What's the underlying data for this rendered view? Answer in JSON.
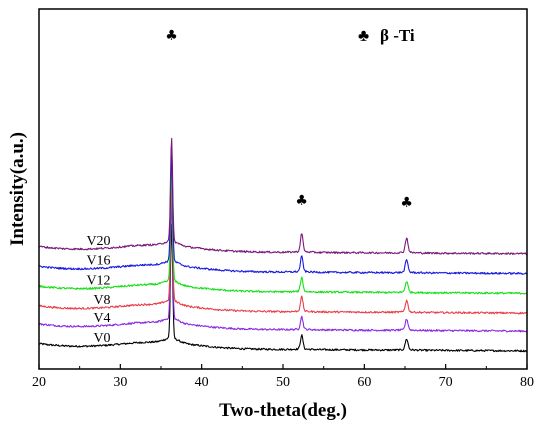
{
  "chart_data": {
    "type": "line",
    "title": "",
    "xlabel": "Two-theta(deg.)",
    "ylabel": "Intensity(a.u.)",
    "xlim": [
      20,
      80
    ],
    "xticks": [
      20,
      30,
      40,
      50,
      60,
      70,
      80
    ],
    "yticks_shown": false,
    "grid": false,
    "peaks": [
      36.3,
      52.3,
      65.2
    ],
    "peak_marker_symbol": "♣",
    "legend": {
      "symbol": "♣",
      "text": "β -Ti",
      "placement": "top-right"
    },
    "series": [
      {
        "name": "V0",
        "color": "#000000",
        "baseline": 0.0,
        "peak_heights": [
          3.2,
          0.38,
          0.3
        ]
      },
      {
        "name": "V4",
        "color": "#8a2be2",
        "baseline": 0.55,
        "peak_heights": [
          3.3,
          0.35,
          0.3
        ]
      },
      {
        "name": "V8",
        "color": "#e8404a",
        "baseline": 1.05,
        "peak_heights": [
          3.2,
          0.4,
          0.32
        ]
      },
      {
        "name": "V12",
        "color": "#16e016",
        "baseline": 1.6,
        "peak_heights": [
          3.1,
          0.38,
          0.3
        ]
      },
      {
        "name": "V16",
        "color": "#1a1ae0",
        "baseline": 2.15,
        "peak_heights": [
          3.0,
          0.42,
          0.34
        ]
      },
      {
        "name": "V20",
        "color": "#7a1a7a",
        "baseline": 2.7,
        "peak_heights": [
          2.9,
          0.5,
          0.4
        ]
      }
    ]
  }
}
